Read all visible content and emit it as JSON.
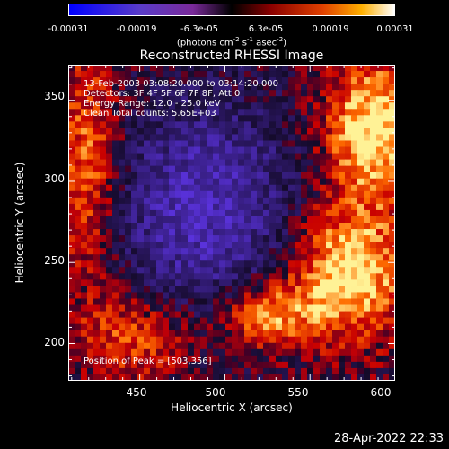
{
  "chart_data": {
    "type": "heatmap",
    "title": "Reconstructed RHESSI Image",
    "xlabel": "Heliocentric X (arcsec)",
    "ylabel": "Heliocentric Y (arcsec)",
    "xlim": [
      408,
      600
    ],
    "ylim": [
      177,
      372
    ],
    "x_ticks": [
      "450",
      "500",
      "550",
      "600"
    ],
    "y_ticks": [
      "200",
      "250",
      "300",
      "350"
    ],
    "colorbar": {
      "ticks": [
        "-0.00031",
        "-0.00019",
        "-6.3e-05",
        "6.3e-05",
        "0.00019",
        "0.00031"
      ],
      "range": [
        -0.00031,
        0.00031
      ],
      "unit_base": "(photons cm",
      "unit_exp1": "-2",
      "unit_mid": " s",
      "unit_exp2": "-1",
      "unit_mid2": " asec",
      "unit_exp3": "-2",
      "unit_end": ")"
    },
    "annotations": [
      "13-Feb-2003 03:08:20.000 to 03:14:20.000",
      "Detectors: 3F 4F 5F 6F 7F 8F, Att 0",
      "Energy Range: 12.0 - 25.0 keV",
      "Clean     Total counts: 5.65E+03"
    ],
    "peak_label": "Position of Peak = [503,356]",
    "colors": {
      "negative": "#3a1a8a",
      "positive": "#ff6a00",
      "background": "#000000"
    }
  },
  "footer": {
    "timestamp": "28-Apr-2022 22:33"
  }
}
